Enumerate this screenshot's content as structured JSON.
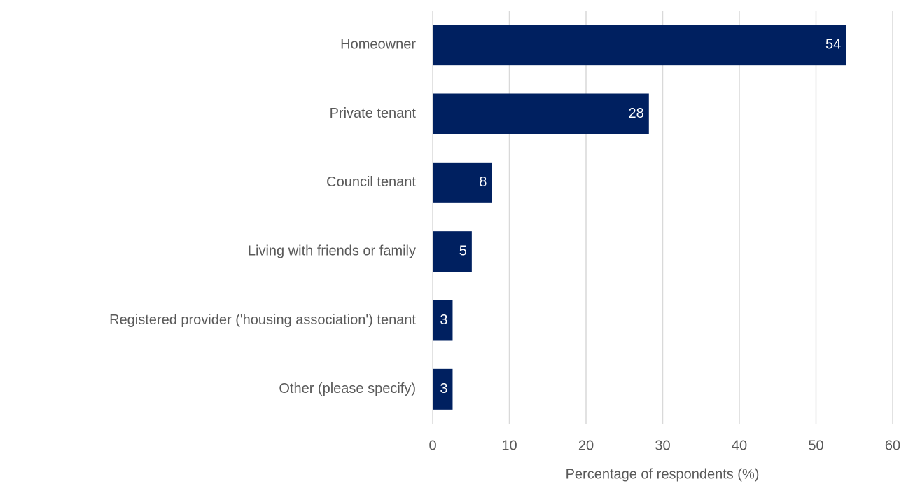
{
  "chart_data": {
    "type": "bar",
    "orientation": "horizontal",
    "x_label": "Percentage of respondents (%)",
    "categories": [
      "Homeowner",
      "Private tenant",
      "Council tenant",
      "Living with friends or family",
      "Registered provider ('housing association') tenant",
      "Other (please specify)"
    ],
    "values": [
      53.9,
      28.2,
      7.7,
      5.1,
      2.6,
      2.6
    ],
    "value_labels": [
      "54",
      "28",
      "8",
      "5",
      "3",
      "3"
    ],
    "color": "#002060",
    "xlim": [
      0,
      60
    ],
    "xticks": [
      0,
      10,
      20,
      30,
      40,
      50,
      60
    ],
    "grid": true
  }
}
